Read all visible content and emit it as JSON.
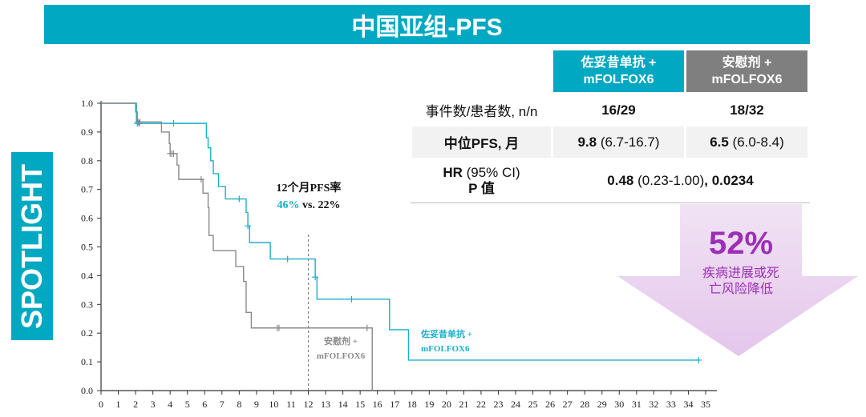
{
  "title": "中国亚组-PFS",
  "side_label": "SPOTLIGHT",
  "table": {
    "headers": [
      {
        "line1": "佐妥昔单抗 +",
        "line2": "mFOLFOX6",
        "color": "#00A8C2"
      },
      {
        "line1": "安慰剂 +",
        "line2": "mFOLFOX6",
        "color": "#7F7F7F"
      }
    ],
    "row1": {
      "label": "事件数/患者数, n/n",
      "a": "16/29",
      "b": "18/32"
    },
    "row2": {
      "label": "中位PFS, 月",
      "a_bold": "9.8",
      "a_rest": " (6.7-16.7)",
      "b_bold": "6.5",
      "b_rest": " (6.0-8.4)"
    },
    "row3": {
      "label_bold": "HR",
      "label_rest": " (95% CI)",
      "label2": "P 值",
      "v1": "0.48",
      "v2": " (0.23-1.00)",
      "v3": ", 0.0234"
    }
  },
  "callout": {
    "value": "52%",
    "line1": "疾病进展或死",
    "line2": "亡风险降低"
  },
  "chart_data": {
    "type": "line",
    "title": "",
    "xlabel": "",
    "ylabel": "",
    "xlim": [
      0,
      35
    ],
    "ylim": [
      0,
      1
    ],
    "xticks": [
      0,
      1,
      2,
      3,
      4,
      5,
      6,
      7,
      8,
      9,
      10,
      11,
      12,
      13,
      14,
      15,
      16,
      17,
      18,
      19,
      20,
      21,
      22,
      23,
      24,
      25,
      26,
      27,
      28,
      29,
      30,
      31,
      32,
      33,
      34,
      35
    ],
    "yticks": [
      "0.0",
      "0.1",
      "0.2",
      "0.3",
      "0.4",
      "0.5",
      "0.6",
      "0.7",
      "0.8",
      "0.9",
      "1.0"
    ],
    "annotation": {
      "title": "12个月PFS率",
      "a": "46%",
      "vs": " vs. 22%",
      "ref_x": 12
    },
    "series": [
      {
        "name": "佐妥昔单抗 + mFOLFOX6",
        "label1": "佐妥昔单抗 +",
        "label2": "mFOLFOX6",
        "color": "#1AAFC8",
        "steps": [
          [
            0,
            1
          ],
          [
            2.05,
            0.93
          ],
          [
            6.1,
            0.88
          ],
          [
            6.2,
            0.845
          ],
          [
            6.35,
            0.8
          ],
          [
            6.5,
            0.755
          ],
          [
            6.8,
            0.71
          ],
          [
            7.2,
            0.667
          ],
          [
            8.4,
            0.62
          ],
          [
            8.5,
            0.573
          ],
          [
            8.6,
            0.515
          ],
          [
            9.8,
            0.458
          ],
          [
            12.4,
            0.395
          ],
          [
            12.5,
            0.318
          ],
          [
            16.7,
            0.212
          ],
          [
            17.8,
            0.106
          ]
        ],
        "end": 34.6,
        "censored": [
          [
            2.1,
            0.93
          ],
          [
            2.2,
            0.93
          ],
          [
            4.2,
            0.93
          ],
          [
            8.0,
            0.667
          ],
          [
            8.5,
            0.573
          ],
          [
            10.8,
            0.458
          ],
          [
            12.4,
            0.395
          ],
          [
            14.5,
            0.318
          ],
          [
            34.6,
            0.106
          ]
        ]
      },
      {
        "name": "安慰剂 + mFOLFOX6",
        "label1": "安慰剂 +",
        "label2": "mFOLFOX6",
        "color": "#8A8A8A",
        "steps": [
          [
            0,
            1
          ],
          [
            2.0,
            0.97
          ],
          [
            2.1,
            0.935
          ],
          [
            3.5,
            0.9
          ],
          [
            3.95,
            0.86
          ],
          [
            4.0,
            0.825
          ],
          [
            4.4,
            0.785
          ],
          [
            4.5,
            0.735
          ],
          [
            5.9,
            0.687
          ],
          [
            6.2,
            0.637
          ],
          [
            6.25,
            0.54
          ],
          [
            6.5,
            0.487
          ],
          [
            7.8,
            0.432
          ],
          [
            8.25,
            0.38
          ],
          [
            8.4,
            0.272
          ],
          [
            8.7,
            0.218
          ],
          [
            15.7,
            0
          ]
        ],
        "end": 15.7,
        "censored": [
          [
            2.15,
            0.935
          ],
          [
            2.25,
            0.935
          ],
          [
            4.0,
            0.825
          ],
          [
            4.1,
            0.825
          ],
          [
            4.2,
            0.825
          ],
          [
            5.8,
            0.735
          ],
          [
            10.2,
            0.218
          ],
          [
            10.3,
            0.218
          ],
          [
            15.4,
            0.218
          ]
        ]
      }
    ]
  }
}
